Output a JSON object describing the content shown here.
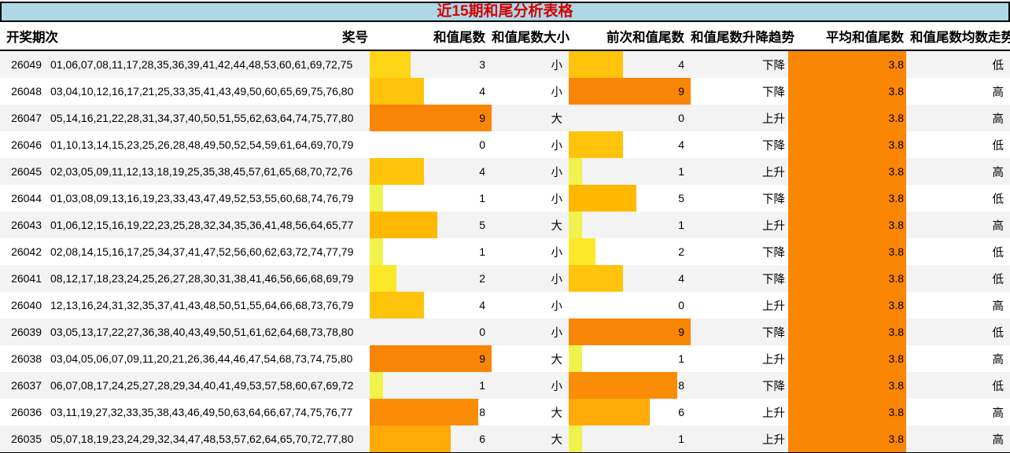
{
  "title": "近15期和尾分析表格",
  "columns": [
    "开奖期次",
    "奖号",
    "和值尾数",
    "和值尾数大小",
    "前次和值尾数",
    "和值尾数升降趋势",
    "平均和值尾数",
    "和值尾数均数走势"
  ],
  "theme": {
    "title_bg": "#ADD8E6",
    "title_color": "#D40000",
    "stripe_color": "#F3F3F3",
    "avg_bar_color": "#FB8604",
    "bar_colors": {
      "1": "#F0F24E",
      "2": "#FDE729",
      "3": "#FFD616",
      "4": "#FFC30B",
      "5": "#FFB800",
      "6": "#FFAA06",
      "7": "#FD9A06",
      "8": "#FA8D05",
      "9": "#F98507"
    },
    "bar_max": 9
  },
  "chart_data": {
    "type": "table",
    "title": "近15期和尾分析表格",
    "columns": [
      "开奖期次",
      "奖号",
      "和值尾数",
      "和值尾数大小",
      "前次和值尾数",
      "和值尾数升降趋势",
      "平均和值尾数",
      "和值尾数均数走势"
    ],
    "rows": [
      {
        "period": "26049",
        "numbers": "01,06,07,08,11,17,28,35,36,39,41,42,44,48,53,60,61,69,72,75",
        "tail": 3,
        "size": "小",
        "prev": 4,
        "trend": "下降",
        "avg": "3.8",
        "mean_trend": "低"
      },
      {
        "period": "26048",
        "numbers": "03,04,10,12,16,17,21,25,33,35,41,43,49,50,60,65,69,75,76,80",
        "tail": 4,
        "size": "小",
        "prev": 9,
        "trend": "下降",
        "avg": "3.8",
        "mean_trend": "高"
      },
      {
        "period": "26047",
        "numbers": "05,14,16,21,22,28,31,34,37,40,50,51,55,62,63,64,74,75,77,80",
        "tail": 9,
        "size": "大",
        "prev": 0,
        "trend": "上升",
        "avg": "3.8",
        "mean_trend": "高"
      },
      {
        "period": "26046",
        "numbers": "01,10,13,14,15,23,25,26,28,48,49,50,52,54,59,61,64,69,70,79",
        "tail": 0,
        "size": "小",
        "prev": 4,
        "trend": "下降",
        "avg": "3.8",
        "mean_trend": "低"
      },
      {
        "period": "26045",
        "numbers": "02,03,05,09,11,12,13,18,19,25,35,38,45,57,61,65,68,70,72,76",
        "tail": 4,
        "size": "小",
        "prev": 1,
        "trend": "上升",
        "avg": "3.8",
        "mean_trend": "高"
      },
      {
        "period": "26044",
        "numbers": "01,03,08,09,13,16,19,23,33,43,47,49,52,53,55,60,68,74,76,79",
        "tail": 1,
        "size": "小",
        "prev": 5,
        "trend": "下降",
        "avg": "3.8",
        "mean_trend": "低"
      },
      {
        "period": "26043",
        "numbers": "01,06,12,15,16,19,22,23,25,28,32,34,35,36,41,48,56,64,65,77",
        "tail": 5,
        "size": "大",
        "prev": 1,
        "trend": "上升",
        "avg": "3.8",
        "mean_trend": "高"
      },
      {
        "period": "26042",
        "numbers": "02,08,14,15,16,17,25,34,37,41,47,52,56,60,62,63,72,74,77,79",
        "tail": 1,
        "size": "小",
        "prev": 2,
        "trend": "下降",
        "avg": "3.8",
        "mean_trend": "低"
      },
      {
        "period": "26041",
        "numbers": "08,12,17,18,23,24,25,26,27,28,30,31,38,41,46,56,66,68,69,79",
        "tail": 2,
        "size": "小",
        "prev": 4,
        "trend": "下降",
        "avg": "3.8",
        "mean_trend": "低"
      },
      {
        "period": "26040",
        "numbers": "12,13,16,24,31,32,35,37,41,43,48,50,51,55,64,66,68,73,76,79",
        "tail": 4,
        "size": "小",
        "prev": 0,
        "trend": "上升",
        "avg": "3.8",
        "mean_trend": "高"
      },
      {
        "period": "26039",
        "numbers": "03,05,13,17,22,27,36,38,40,43,49,50,51,61,62,64,68,73,78,80",
        "tail": 0,
        "size": "小",
        "prev": 9,
        "trend": "下降",
        "avg": "3.8",
        "mean_trend": "低"
      },
      {
        "period": "26038",
        "numbers": "03,04,05,06,07,09,11,20,21,26,36,44,46,47,54,68,73,74,75,80",
        "tail": 9,
        "size": "大",
        "prev": 1,
        "trend": "上升",
        "avg": "3.8",
        "mean_trend": "高"
      },
      {
        "period": "26037",
        "numbers": "06,07,08,17,24,25,27,28,29,34,40,41,49,53,57,58,60,67,69,72",
        "tail": 1,
        "size": "小",
        "prev": 8,
        "trend": "下降",
        "avg": "3.8",
        "mean_trend": "低"
      },
      {
        "period": "26036",
        "numbers": "03,11,19,27,32,33,35,38,43,46,49,50,63,64,66,67,74,75,76,77",
        "tail": 8,
        "size": "大",
        "prev": 6,
        "trend": "上升",
        "avg": "3.8",
        "mean_trend": "高"
      },
      {
        "period": "26035",
        "numbers": "05,07,18,19,23,24,29,32,34,47,48,53,57,62,64,65,70,72,77,80",
        "tail": 6,
        "size": "大",
        "prev": 1,
        "trend": "上升",
        "avg": "3.8",
        "mean_trend": "高"
      }
    ]
  }
}
